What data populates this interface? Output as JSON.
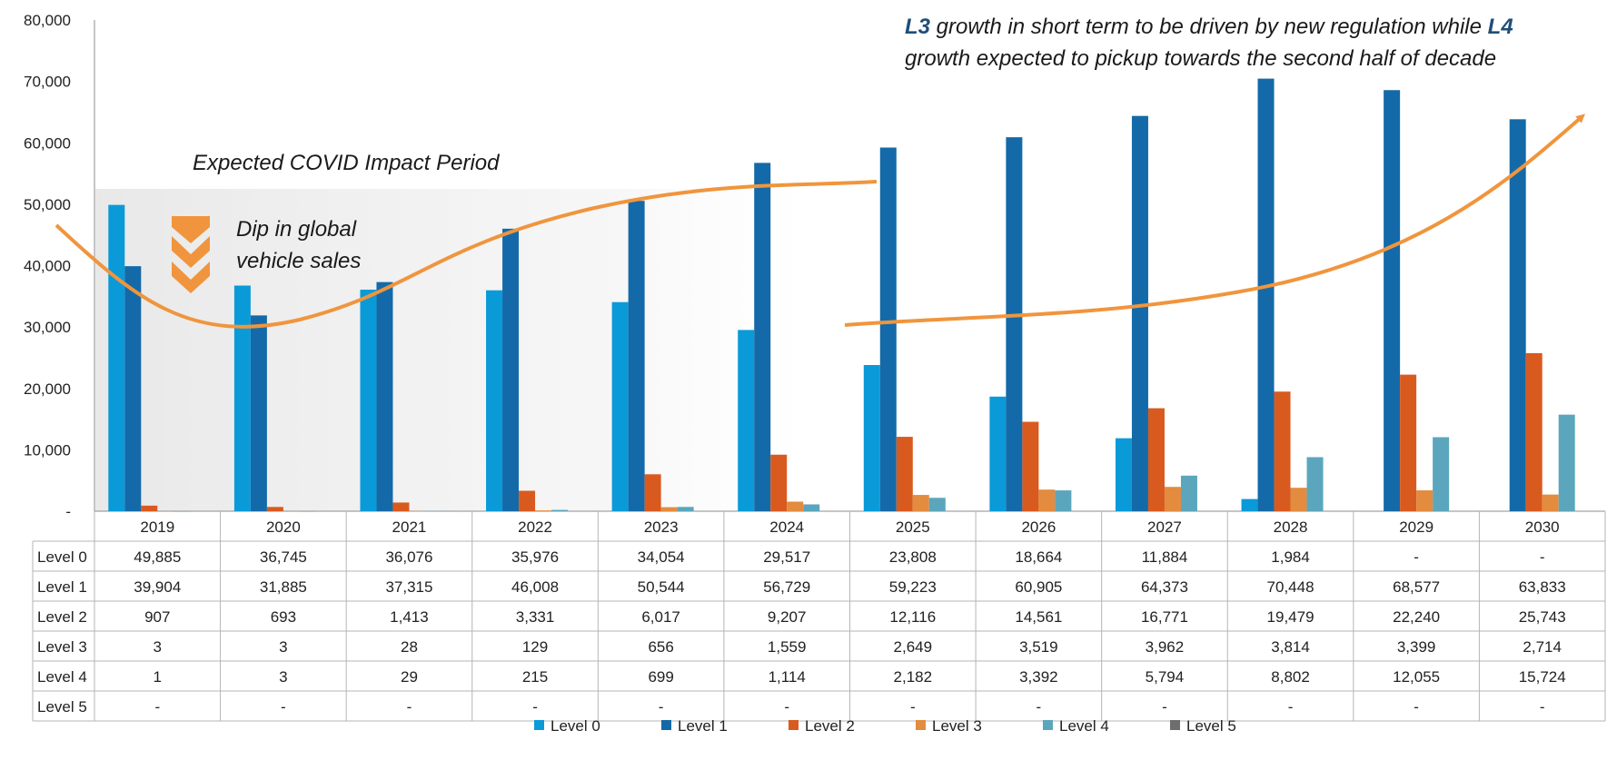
{
  "chart_data": {
    "type": "bar",
    "categories": [
      "2019",
      "2020",
      "2021",
      "2022",
      "2023",
      "2024",
      "2025",
      "2026",
      "2027",
      "2028",
      "2029",
      "2030"
    ],
    "ylim": [
      0,
      80000
    ],
    "yticks": [
      {
        "value": 0,
        "label": "-"
      },
      {
        "value": 10000,
        "label": "10,000"
      },
      {
        "value": 20000,
        "label": "20,000"
      },
      {
        "value": 30000,
        "label": "30,000"
      },
      {
        "value": 40000,
        "label": "40,000"
      },
      {
        "value": 50000,
        "label": "50,000"
      },
      {
        "value": 60000,
        "label": "60,000"
      },
      {
        "value": 70000,
        "label": "70,000"
      },
      {
        "value": 80000,
        "label": "80,000"
      }
    ],
    "grid": false,
    "legend_position": "bottom",
    "series": [
      {
        "name": "Level 0",
        "color": "#0b9ad8",
        "values": [
          49885,
          36745,
          36076,
          35976,
          34054,
          29517,
          23808,
          18664,
          11884,
          1984,
          0,
          0
        ],
        "labels": [
          "49,885",
          "36,745",
          "36,076",
          "35,976",
          "34,054",
          "29,517",
          "23,808",
          "18,664",
          "11,884",
          "1,984",
          "-",
          "-"
        ]
      },
      {
        "name": "Level 1",
        "color": "#146aa8",
        "values": [
          39904,
          31885,
          37315,
          46008,
          50544,
          56729,
          59223,
          60905,
          64373,
          70448,
          68577,
          63833
        ],
        "labels": [
          "39,904",
          "31,885",
          "37,315",
          "46,008",
          "50,544",
          "56,729",
          "59,223",
          "60,905",
          "64,373",
          "70,448",
          "68,577",
          "63,833"
        ]
      },
      {
        "name": "Level 2",
        "color": "#d95a1f",
        "values": [
          907,
          693,
          1413,
          3331,
          6017,
          9207,
          12116,
          14561,
          16771,
          19479,
          22240,
          25743
        ],
        "labels": [
          "907",
          "693",
          "1,413",
          "3,331",
          "6,017",
          "9,207",
          "12,116",
          "14,561",
          "16,771",
          "19,479",
          "22,240",
          "25,743"
        ]
      },
      {
        "name": "Level 3",
        "color": "#e38b3f",
        "values": [
          3,
          3,
          28,
          129,
          656,
          1559,
          2649,
          3519,
          3962,
          3814,
          3399,
          2714
        ],
        "labels": [
          "3",
          "3",
          "28",
          "129",
          "656",
          "1,559",
          "2,649",
          "3,519",
          "3,962",
          "3,814",
          "3,399",
          "2,714"
        ]
      },
      {
        "name": "Level 4",
        "color": "#5ba6bc",
        "values": [
          1,
          3,
          29,
          215,
          699,
          1114,
          2182,
          3392,
          5794,
          8802,
          12055,
          15724
        ],
        "labels": [
          "1",
          "3",
          "29",
          "215",
          "699",
          "1,114",
          "2,182",
          "3,392",
          "5,794",
          "8,802",
          "12,055",
          "15,724"
        ]
      },
      {
        "name": "Level 5",
        "color": "#6e6e6e",
        "values": [
          0,
          0,
          0,
          0,
          0,
          0,
          0,
          0,
          0,
          0,
          0,
          0
        ],
        "labels": [
          "-",
          "-",
          "-",
          "-",
          "-",
          "-",
          "-",
          "-",
          "-",
          "-",
          "-",
          "-"
        ]
      }
    ],
    "annotations": {
      "covid_label": "Expected COVID Impact Period",
      "dip_line1": "Dip in global",
      "dip_line2": "vehicle sales",
      "growth_l3": "L3",
      "growth_line1_rest": " growth in short term to be driven by new regulation while ",
      "growth_l4": "L4",
      "growth_line2": "growth expected to pickup towards the second half of decade"
    }
  }
}
